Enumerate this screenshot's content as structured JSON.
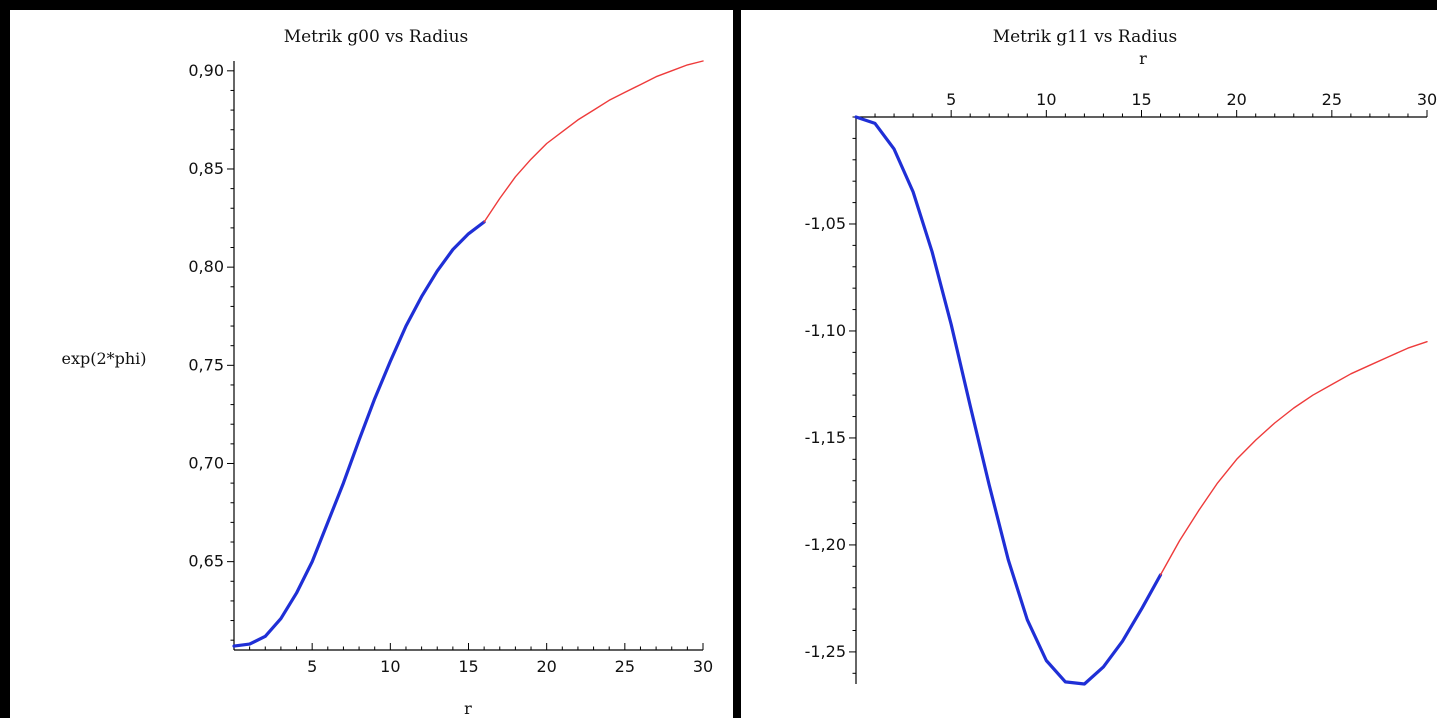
{
  "colors": {
    "solution_series": "#1f2fd6",
    "extension_series": "#ee3b3b",
    "axes": "#000000",
    "border": "#000000"
  },
  "chart_data": [
    {
      "type": "line",
      "title": "Metrik g00 vs Radius",
      "xlabel": "r",
      "ylabel": "exp(2*phi)",
      "xlim": [
        0,
        30
      ],
      "ylim": [
        0.605,
        0.905
      ],
      "x_ticks": [
        5,
        10,
        15,
        20,
        25,
        30
      ],
      "x_tick_labels": [
        "5",
        "10",
        "15",
        "20",
        "25",
        "30"
      ],
      "y_ticks": [
        0.65,
        0.7,
        0.75,
        0.8,
        0.85,
        0.9
      ],
      "y_tick_labels": [
        "0,65",
        "0,70",
        "0,75",
        "0,80",
        "0,85",
        "0,90"
      ],
      "x_axis_position": "bottom",
      "grid": false,
      "legend": "none",
      "series": [
        {
          "color_key": "solution_series",
          "x": [
            0,
            1,
            2,
            3,
            4,
            5,
            6,
            7,
            8,
            9,
            10,
            11,
            12,
            13,
            14,
            15,
            16
          ],
          "y": [
            0.607,
            0.608,
            0.612,
            0.621,
            0.634,
            0.65,
            0.67,
            0.69,
            0.712,
            0.733,
            0.752,
            0.77,
            0.785,
            0.798,
            0.809,
            0.817,
            0.823
          ]
        },
        {
          "color_key": "extension_series",
          "x": [
            16,
            17,
            18,
            19,
            20,
            21,
            22,
            23,
            24,
            25,
            26,
            27,
            28,
            29,
            30
          ],
          "y": [
            0.823,
            0.835,
            0.846,
            0.855,
            0.863,
            0.869,
            0.875,
            0.88,
            0.885,
            0.889,
            0.893,
            0.897,
            0.9,
            0.903,
            0.905
          ]
        }
      ]
    },
    {
      "type": "line",
      "title": "Metrik g11 vs Radius",
      "xlabel": "r",
      "ylabel": "",
      "xlim": [
        0,
        30
      ],
      "ylim": [
        -1.265,
        -1.0
      ],
      "x_ticks": [
        5,
        10,
        15,
        20,
        25,
        30
      ],
      "x_tick_labels": [
        "5",
        "10",
        "15",
        "20",
        "25",
        "30"
      ],
      "y_ticks": [
        -1.05,
        -1.1,
        -1.15,
        -1.2,
        -1.25
      ],
      "y_tick_labels": [
        "-1,05",
        "-1,10",
        "-1,15",
        "-1,20",
        "-1,25"
      ],
      "x_axis_position": "top",
      "grid": false,
      "legend": "none",
      "series": [
        {
          "color_key": "solution_series",
          "x": [
            0,
            1,
            2,
            3,
            4,
            5,
            6,
            7,
            8,
            9,
            10,
            11,
            12,
            13,
            14,
            15,
            16
          ],
          "y": [
            -1.0,
            -1.003,
            -1.015,
            -1.035,
            -1.063,
            -1.097,
            -1.135,
            -1.172,
            -1.207,
            -1.235,
            -1.254,
            -1.264,
            -1.265,
            -1.257,
            -1.245,
            -1.23,
            -1.214
          ]
        },
        {
          "color_key": "extension_series",
          "x": [
            16,
            17,
            18,
            19,
            20,
            21,
            22,
            23,
            24,
            25,
            26,
            27,
            28,
            29,
            30
          ],
          "y": [
            -1.214,
            -1.198,
            -1.184,
            -1.171,
            -1.16,
            -1.151,
            -1.143,
            -1.136,
            -1.13,
            -1.125,
            -1.12,
            -1.116,
            -1.112,
            -1.108,
            -1.105
          ]
        }
      ]
    }
  ]
}
